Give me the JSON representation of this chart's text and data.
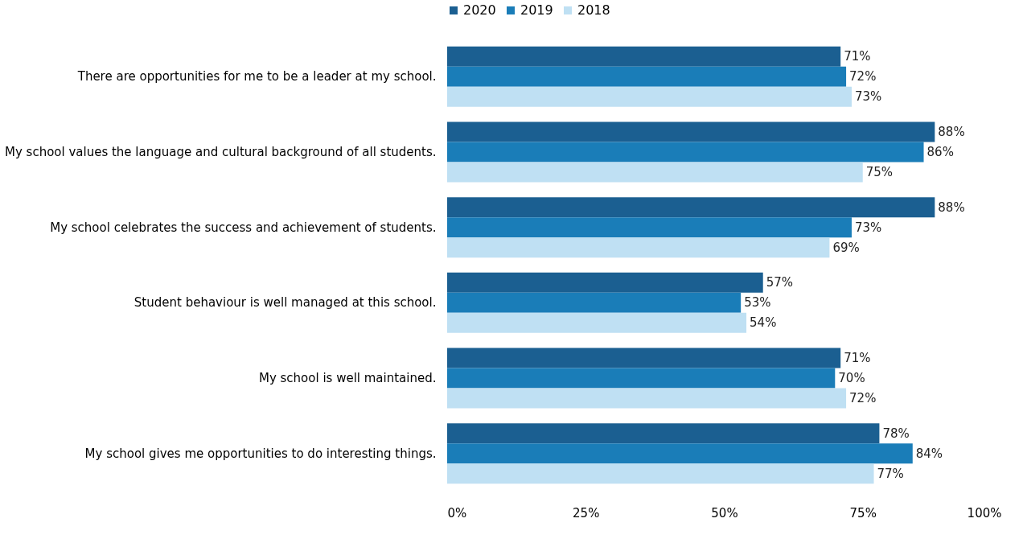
{
  "chart_data": {
    "type": "bar",
    "orientation": "horizontal",
    "categories": [
      "There are opportunities for me to be a leader at my school.",
      "My school values the language and cultural background of all students.",
      "My school celebrates the success and achievement of students.",
      "Student behaviour is well managed at this school.",
      "My school is well maintained.",
      "My school gives me opportunities to do interesting things."
    ],
    "series": [
      {
        "name": "2020",
        "color": "#1b5f91",
        "values": [
          71,
          88,
          88,
          57,
          71,
          78
        ],
        "value_labels": [
          "71%",
          "88%",
          "88%",
          "57%",
          "71%",
          "78%"
        ]
      },
      {
        "name": "2019",
        "color": "#1a7db8",
        "values": [
          72,
          86,
          73,
          53,
          70,
          84
        ],
        "value_labels": [
          "72%",
          "86%",
          "73%",
          "53%",
          "70%",
          "84%"
        ]
      },
      {
        "name": "2018",
        "color": "#bfe0f3",
        "values": [
          73,
          75,
          69,
          54,
          72,
          77
        ],
        "value_labels": [
          "73%",
          "75%",
          "69%",
          "54%",
          "72%",
          "77%"
        ]
      }
    ],
    "xlim": [
      0,
      100
    ],
    "xticks": [
      {
        "value": 0,
        "label": "0%"
      },
      {
        "value": 25,
        "label": "25%"
      },
      {
        "value": 50,
        "label": "50%"
      },
      {
        "value": 75,
        "label": "75%"
      },
      {
        "value": 100,
        "label": "100%"
      }
    ],
    "legend": "top",
    "grid": false
  }
}
